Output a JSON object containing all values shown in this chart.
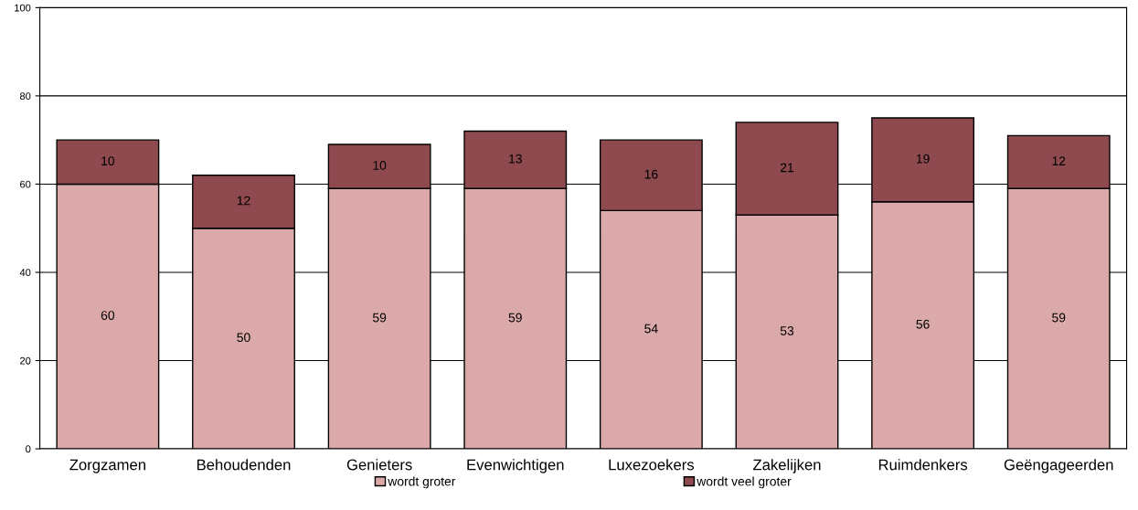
{
  "chart_data": {
    "type": "bar",
    "stacked": true,
    "categories": [
      "Zorgzamen",
      "Behoudenden",
      "Genieters",
      "Evenwichtigen",
      "Luxezoekers",
      "Zakelijken",
      "Ruimdenkers",
      "Geëngageerden"
    ],
    "series": [
      {
        "name": "wordt groter",
        "color": "#dba9a9",
        "values": [
          60,
          50,
          59,
          59,
          54,
          53,
          56,
          59
        ]
      },
      {
        "name": "wordt veel groter",
        "color": "#8e4a4e",
        "values": [
          10,
          12,
          10,
          13,
          16,
          21,
          19,
          12
        ]
      }
    ],
    "ylim": [
      0,
      100
    ],
    "yticks": [
      0,
      20,
      40,
      60,
      80,
      100
    ],
    "grid": "y",
    "legend": "bottom",
    "data_labels": true
  }
}
